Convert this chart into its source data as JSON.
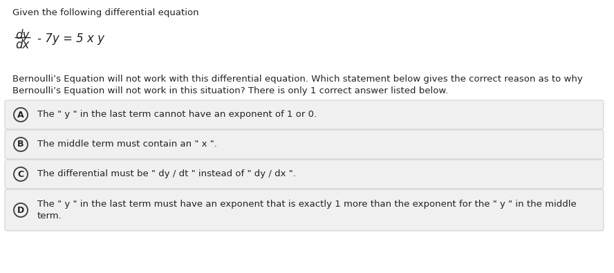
{
  "background_color": "#ffffff",
  "intro_text": "Given the following differential equation",
  "equation_num": "dy",
  "equation_den": "dx",
  "equation_rest": "- 7y = 5 x y",
  "description_line1": "Bernoulli’s Equation will not work with this differential equation. Which statement below gives the correct reason as to why",
  "description_line2": "Bernoulli’s Equation will not work in this situation? There is only 1 correct answer listed below.",
  "options": [
    {
      "label": "A",
      "text": "The \" y \" in the last term cannot have an exponent of 1 or 0."
    },
    {
      "label": "B",
      "text": "The middle term must contain an \" x \"."
    },
    {
      "label": "C",
      "text": "The differential must be \" dy / dt \" instead of \" dy / dx \"."
    },
    {
      "label": "D",
      "text_line1": "The \" y \" in the last term must have an exponent that is exactly 1 more than the exponent for the \" y \" in the middle",
      "text_line2": "term."
    }
  ],
  "option_bg_color": "#f0f0f0",
  "circle_edge_color": "#444444",
  "text_color": "#222222",
  "font_size_intro": 9.5,
  "font_size_eq_num": 12,
  "font_size_eq_rest": 12,
  "font_size_desc": 9.5,
  "font_size_option": 9.5,
  "font_size_label": 9
}
